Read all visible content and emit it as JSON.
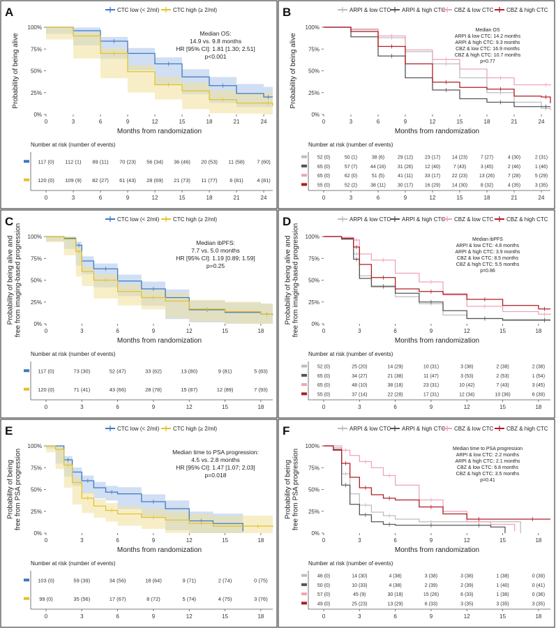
{
  "colors": {
    "ctc_low": "#3f78c2",
    "ctc_high": "#e3c22a",
    "ctc_low_band": "#a9c4ea",
    "ctc_high_band": "#f1e09a",
    "arpi_low": "#bdbdbd",
    "arpi_high": "#555555",
    "cbz_low": "#efa3b9",
    "cbz_high": "#b01c24"
  },
  "panels": [
    {
      "letter": "A",
      "legend": [
        "CTC low (< 2/ml)",
        "CTC high (≥ 2/ml)"
      ],
      "ylabel": [
        "Probability of being alive"
      ],
      "xlabel": "Months from randomization",
      "xticks": [
        "0",
        "3",
        "6",
        "9",
        "12",
        "15",
        "18",
        "21",
        "24"
      ],
      "yticks": [
        "100%",
        "75%",
        "50%",
        "25%",
        "0%"
      ],
      "annotation": [
        "Median OS:",
        "14.9 vs. 9.8 months",
        "HR [95% CI]: 1.81 [1.30; 2.51]",
        "p<0.001"
      ],
      "risk_title": "Number at risk (number of events)",
      "risk_rows": [
        [
          "117 (0)",
          "112 (1)",
          "89 (11)",
          "70 (23)",
          "56 (34)",
          "36 (46)",
          "20 (53)",
          "11 (58)",
          "7 (60)"
        ],
        [
          "120 (0)",
          "109 (9)",
          "82 (27)",
          "61 (43)",
          "28 (69)",
          "21 (73)",
          "11 (77)",
          "6 (81)",
          "4 (81)"
        ]
      ]
    },
    {
      "letter": "B",
      "legend": [
        "ARPI & low CTC",
        "ARPI & high CTC",
        "CBZ & low CTC",
        "CBZ & high CTC"
      ],
      "ylabel": [
        "Probability of being alive"
      ],
      "xlabel": "Months from randomization",
      "xticks": [
        "0",
        "3",
        "6",
        "9",
        "12",
        "15",
        "18",
        "21",
        "24"
      ],
      "yticks": [
        "100%",
        "75%",
        "50%",
        "25%",
        "0%"
      ],
      "annotation": [
        "Median OS",
        "ARPI & low CTC: 14.2 months",
        "ARPI & high CTC: 9.3 months",
        "CBZ & low CTC: 16.9 months",
        "CBZ & high CTC: 10.7 months",
        "p=0.77"
      ],
      "risk_title": "Number at risk (number of events)",
      "risk_rows": [
        [
          "52 (0)",
          "50 (1)",
          "38 (6)",
          "29 (12)",
          "23 (17)",
          "14 (23)",
          "7 (27)",
          "4 (30)",
          "2 (31)"
        ],
        [
          "65 (0)",
          "57 (7)",
          "44 (16)",
          "31 (26)",
          "12 (40)",
          "7 (43)",
          "3 (45)",
          "2 (46)",
          "1 (46)"
        ],
        [
          "65 (0)",
          "62 (0)",
          "51 (5)",
          "41 (11)",
          "33 (17)",
          "22 (23)",
          "13 (26)",
          "7 (28)",
          "5 (29)"
        ],
        [
          "55 (0)",
          "52 (2)",
          "38 (11)",
          "30 (17)",
          "16 (29)",
          "14 (30)",
          "8 (32)",
          "4 (35)",
          "3 (35)"
        ]
      ]
    },
    {
      "letter": "C",
      "legend": [
        "CTC low (< 2/ml)",
        "CTC high (≥ 2/ml)"
      ],
      "ylabel": [
        "Probability of being alive and",
        "free from imaging-based progression"
      ],
      "xlabel": "Months from randomization",
      "xticks": [
        "0",
        "3",
        "6",
        "9",
        "12",
        "15",
        "18"
      ],
      "yticks": [
        "100%",
        "75%",
        "50%",
        "25%",
        "0%"
      ],
      "annotation": [
        "Median ibPFS:",
        "7.7 vs. 5.0 months",
        "HR [95% CI]: 1.19 [0.89; 1.59]",
        "p=0.25"
      ],
      "risk_title": "Number at risk (number of events)",
      "risk_rows": [
        [
          "117 (0)",
          "73 (30)",
          "52 (47)",
          "33 (62)",
          "13 (80)",
          "9 (81)",
          "5 (83)"
        ],
        [
          "120 (0)",
          "71 (41)",
          "43 (66)",
          "28 (78)",
          "15 (87)",
          "12 (89)",
          "7 (93)"
        ]
      ]
    },
    {
      "letter": "D",
      "legend": [
        "ARPI & low CTC",
        "ARPI & high CTC",
        "CBZ & low CTC",
        "CBZ & high CTC"
      ],
      "ylabel": [
        "Probability of being alive and",
        "free from imaging-based progression"
      ],
      "xlabel": "Months from randomization",
      "xticks": [
        "0",
        "3",
        "6",
        "9",
        "12",
        "15",
        "18"
      ],
      "yticks": [
        "100%",
        "75%",
        "50%",
        "25%",
        "0%"
      ],
      "annotation": [
        "Median ibPFS",
        "ARPI & low CTC: 4.8 months",
        "ARPI & high CTC: 3.9 months",
        "CBZ & low CTC: 8.5 months",
        "CBZ & high CTC: 5.5 months",
        "p=0.86"
      ],
      "risk_title": "Number at risk (number of events)",
      "risk_rows": [
        [
          "52 (0)",
          "25 (20)",
          "14 (29)",
          "10 (31)",
          "3 (38)",
          "2 (38)",
          "2 (38)"
        ],
        [
          "65 (0)",
          "34 (27)",
          "21 (38)",
          "11 (47)",
          "3 (53)",
          "2 (53)",
          "1 (54)"
        ],
        [
          "65 (0)",
          "48 (10)",
          "38 (18)",
          "23 (31)",
          "10 (42)",
          "7 (43)",
          "3 (45)"
        ],
        [
          "55 (0)",
          "37 (14)",
          "22 (28)",
          "17 (31)",
          "12 (34)",
          "10 (36)",
          "6 (39)"
        ]
      ]
    },
    {
      "letter": "E",
      "legend": [
        "CTC low (< 2/ml)",
        "CTC high (≥ 2/ml)"
      ],
      "ylabel": [
        "Probability of being",
        "free from PSA progression"
      ],
      "xlabel": "Months from randomization",
      "xticks": [
        "0",
        "3",
        "6",
        "9",
        "12",
        "15",
        "18"
      ],
      "yticks": [
        "100%",
        "75%",
        "50%",
        "25%",
        "0%"
      ],
      "annotation": [
        "Median time to PSA progression:",
        "4.5 vs. 2.8 months",
        "HR [95% CI]: 1.47 [1.07; 2.03]",
        "p=0.018"
      ],
      "risk_title": "Number at risk (number of events)",
      "risk_rows": [
        [
          "103 (0)",
          "59 (39)",
          "34 (56)",
          "18 (64)",
          "9 (71)",
          "2 (74)",
          "0 (75)"
        ],
        [
          "99 (0)",
          "35 (56)",
          "17 (67)",
          "8 (72)",
          "5 (74)",
          "4 (75)",
          "3 (76)"
        ]
      ]
    },
    {
      "letter": "F",
      "legend": [
        "ARPI & low CTC",
        "ARPI & high CTC",
        "CBZ & low CTC",
        "CBZ & high CTC"
      ],
      "ylabel": [
        "Probability of being",
        "free from PSA progression"
      ],
      "xlabel": "Months from randomization",
      "xticks": [
        "0",
        "3",
        "6",
        "9",
        "12",
        "15",
        "18"
      ],
      "yticks": [
        "100%",
        "75%",
        "50%",
        "25%",
        "0%"
      ],
      "annotation": [
        "Median time to PSA progression",
        "ARPI & low CTC: 2.2 months",
        "ARPI & high CTC: 2.1 months",
        "CBZ & low CTC: 6.8 months",
        "CBZ & high CTC: 3.5 months",
        "p=0.41"
      ],
      "risk_title": "Number at risk (number of events)",
      "risk_rows": [
        [
          "46 (0)",
          "14 (30)",
          "4 (38)",
          "3 (38)",
          "3 (38)",
          "1 (38)",
          "0 (39)"
        ],
        [
          "50 (0)",
          "10 (33)",
          "4 (38)",
          "2 (39)",
          "2 (39)",
          "1 (40)",
          "0 (41)"
        ],
        [
          "57 (0)",
          "45 (9)",
          "30 (18)",
          "15 (26)",
          "6 (33)",
          "1 (36)",
          "0 (36)"
        ],
        [
          "49 (0)",
          "25 (23)",
          "13 (29)",
          "6 (33)",
          "3 (35)",
          "3 (35)",
          "3 (35)"
        ]
      ]
    }
  ],
  "chart_data": [
    {
      "type": "line",
      "panel": "A",
      "xlim": [
        0,
        25
      ],
      "ylim": [
        0,
        1
      ],
      "ci_bands": true,
      "series": [
        {
          "name": "CTC low (< 2/ml)",
          "x": [
            0,
            3,
            6,
            9,
            12,
            15,
            18,
            21,
            24,
            25
          ],
          "y": [
            1.0,
            0.96,
            0.84,
            0.7,
            0.58,
            0.43,
            0.33,
            0.24,
            0.2,
            0.2
          ]
        },
        {
          "name": "CTC high (≥ 2/ml)",
          "x": [
            0,
            3,
            6,
            9,
            12,
            15,
            18,
            21,
            24,
            25
          ],
          "y": [
            1.0,
            0.9,
            0.7,
            0.49,
            0.34,
            0.27,
            0.17,
            0.13,
            0.13,
            0.1
          ]
        }
      ]
    },
    {
      "type": "line",
      "panel": "B",
      "xlim": [
        0,
        25
      ],
      "ylim": [
        0,
        1
      ],
      "series": [
        {
          "name": "ARPI & low CTC",
          "x": [
            0,
            3,
            6,
            9,
            12,
            15,
            18,
            21,
            24,
            25
          ],
          "y": [
            1.0,
            0.97,
            0.88,
            0.72,
            0.58,
            0.42,
            0.25,
            0.14,
            0.07,
            0.05
          ]
        },
        {
          "name": "ARPI & high CTC",
          "x": [
            0,
            3,
            6,
            9,
            12,
            15,
            18,
            21,
            24,
            25
          ],
          "y": [
            1.0,
            0.89,
            0.67,
            0.42,
            0.28,
            0.18,
            0.14,
            0.09,
            0.09,
            0.09
          ]
        },
        {
          "name": "CBZ & low CTC",
          "x": [
            0,
            3,
            6,
            9,
            12,
            15,
            18,
            21,
            24,
            25
          ],
          "y": [
            1.0,
            0.98,
            0.9,
            0.74,
            0.63,
            0.52,
            0.42,
            0.34,
            0.34,
            0.33
          ]
        },
        {
          "name": "CBZ & high CTC",
          "x": [
            0,
            3,
            6,
            9,
            12,
            15,
            18,
            21,
            24,
            25
          ],
          "y": [
            1.0,
            0.95,
            0.78,
            0.58,
            0.37,
            0.31,
            0.29,
            0.21,
            0.2,
            0.13
          ]
        }
      ]
    },
    {
      "type": "line",
      "panel": "C",
      "xlim": [
        0,
        19
      ],
      "ylim": [
        0,
        1
      ],
      "ci_bands": true,
      "series": [
        {
          "name": "CTC low (< 2/ml)",
          "x": [
            0,
            1.5,
            2.5,
            3,
            4,
            6,
            8,
            10,
            12,
            15,
            18,
            19
          ],
          "y": [
            1.0,
            0.98,
            0.9,
            0.72,
            0.63,
            0.49,
            0.4,
            0.3,
            0.16,
            0.13,
            0.11,
            0.1
          ]
        },
        {
          "name": "CTC high (≥ 2/ml)",
          "x": [
            0,
            1.5,
            2.5,
            3,
            4,
            6,
            8,
            10,
            12,
            15,
            18,
            19
          ],
          "y": [
            1.0,
            0.97,
            0.83,
            0.6,
            0.5,
            0.37,
            0.3,
            0.26,
            0.17,
            0.14,
            0.11,
            0.1
          ]
        }
      ]
    },
    {
      "type": "line",
      "panel": "D",
      "xlim": [
        0,
        19
      ],
      "ylim": [
        0,
        1
      ],
      "series": [
        {
          "name": "ARPI & low CTC",
          "x": [
            0,
            1.5,
            2.5,
            3,
            4,
            6,
            8,
            10,
            12,
            15,
            18,
            19
          ],
          "y": [
            1.0,
            0.98,
            0.8,
            0.55,
            0.42,
            0.31,
            0.23,
            0.1,
            0.06,
            0.05,
            0.05,
            0.05
          ]
        },
        {
          "name": "ARPI & high CTC",
          "x": [
            0,
            1.5,
            2.5,
            3,
            4,
            6,
            8,
            10,
            12,
            15,
            18,
            19
          ],
          "y": [
            1.0,
            0.97,
            0.74,
            0.52,
            0.43,
            0.35,
            0.25,
            0.15,
            0.06,
            0.04,
            0.04,
            0.04
          ]
        },
        {
          "name": "CBZ & low CTC",
          "x": [
            0,
            1.5,
            2.5,
            3,
            4,
            6,
            8,
            10,
            12,
            15,
            18,
            19
          ],
          "y": [
            1.0,
            0.99,
            0.96,
            0.8,
            0.73,
            0.58,
            0.48,
            0.33,
            0.2,
            0.14,
            0.11,
            0.1
          ]
        },
        {
          "name": "CBZ & high CTC",
          "x": [
            0,
            1.5,
            2.5,
            3,
            4,
            6,
            8,
            10,
            12,
            15,
            18,
            19
          ],
          "y": [
            1.0,
            0.98,
            0.88,
            0.68,
            0.53,
            0.4,
            0.37,
            0.34,
            0.28,
            0.21,
            0.17,
            0.17
          ]
        }
      ]
    },
    {
      "type": "line",
      "panel": "E",
      "xlim": [
        0,
        19
      ],
      "ylim": [
        0,
        1
      ],
      "ci_bands": true,
      "series": [
        {
          "name": "CTC low (< 2/ml)",
          "x": [
            0,
            0.8,
            1.5,
            2.2,
            3,
            4,
            5,
            6,
            8,
            10,
            12,
            14,
            16.5
          ],
          "y": [
            1.0,
            1.0,
            0.84,
            0.7,
            0.6,
            0.52,
            0.47,
            0.45,
            0.36,
            0.28,
            0.14,
            0.11,
            0.02
          ]
        },
        {
          "name": "CTC high (≥ 2/ml)",
          "x": [
            0,
            0.8,
            1.5,
            2.2,
            3,
            4,
            5,
            6,
            8,
            10,
            12,
            14,
            16.5,
            19
          ],
          "y": [
            1.0,
            0.96,
            0.78,
            0.58,
            0.4,
            0.31,
            0.26,
            0.22,
            0.18,
            0.15,
            0.11,
            0.08,
            0.08,
            0.07
          ]
        }
      ]
    },
    {
      "type": "line",
      "panel": "F",
      "xlim": [
        0,
        19
      ],
      "ylim": [
        0,
        1
      ],
      "series": [
        {
          "name": "ARPI & low CTC",
          "x": [
            0,
            0.8,
            1.5,
            2.2,
            3,
            4,
            5,
            6,
            8,
            10,
            12,
            14,
            16.5
          ],
          "y": [
            1.0,
            0.98,
            0.68,
            0.45,
            0.32,
            0.24,
            0.2,
            0.16,
            0.13,
            0.13,
            0.13,
            0.13,
            0.0
          ]
        },
        {
          "name": "ARPI & high CTC",
          "x": [
            0,
            0.8,
            1.5,
            2.2,
            3,
            4,
            5,
            6,
            8,
            10,
            12,
            14,
            15.2
          ],
          "y": [
            1.0,
            0.95,
            0.55,
            0.33,
            0.21,
            0.13,
            0.1,
            0.09,
            0.09,
            0.09,
            0.09,
            0.07,
            0.0
          ]
        },
        {
          "name": "CBZ & low CTC",
          "x": [
            0,
            0.8,
            1.5,
            2.2,
            3,
            4,
            5,
            6,
            8,
            10,
            12,
            14,
            16
          ],
          "y": [
            1.0,
            1.0,
            0.95,
            0.89,
            0.82,
            0.75,
            0.66,
            0.55,
            0.38,
            0.25,
            0.13,
            0.1,
            0.02
          ]
        },
        {
          "name": "CBZ & high CTC",
          "x": [
            0,
            0.8,
            1.5,
            2.2,
            3,
            4,
            5,
            6,
            8,
            10,
            12,
            14,
            16,
            19
          ],
          "y": [
            1.0,
            0.96,
            0.8,
            0.64,
            0.52,
            0.44,
            0.4,
            0.38,
            0.3,
            0.22,
            0.16,
            0.16,
            0.16,
            0.16
          ]
        }
      ]
    }
  ]
}
